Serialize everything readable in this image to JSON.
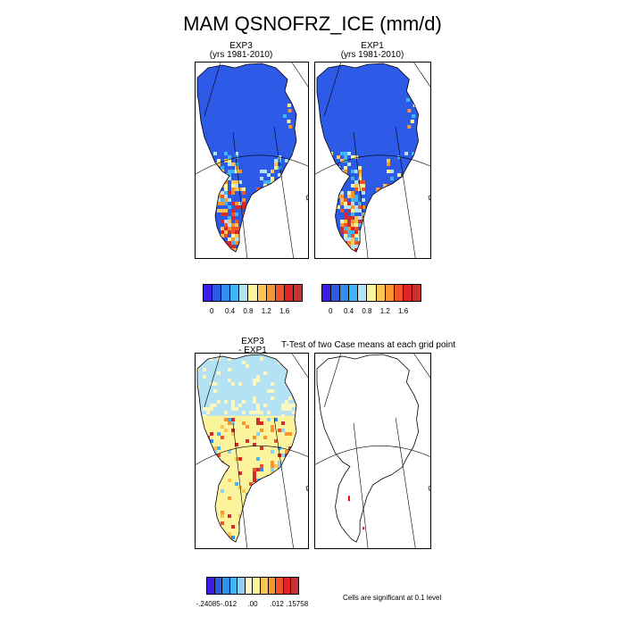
{
  "title": "MAM QSNOFRZ_ICE (mm/d)",
  "panels": [
    {
      "id": "exp3",
      "title_line1": "EXP3",
      "title_line2": "(yrs 1981-2010)"
    },
    {
      "id": "exp1",
      "title_line1": "EXP1",
      "title_line2": "(yrs 1981-2010)"
    },
    {
      "id": "diff",
      "title_line1": "EXP3",
      "title_line2": "- EXP1"
    },
    {
      "id": "ttest",
      "title_line1": "T-Test of two Case means at each grid point",
      "title_line2": ""
    }
  ],
  "colorbar_top": {
    "colors": [
      "#3a1ee6",
      "#2d5ae6",
      "#2f8ef0",
      "#41b6f6",
      "#b4e2f4",
      "#fcf49c",
      "#fcc455",
      "#f89530",
      "#f0532a",
      "#df2424",
      "#c83232"
    ],
    "tick_labels": [
      "0",
      "0.4",
      "0.8",
      "1.2",
      "1.6"
    ]
  },
  "colorbar_diff": {
    "colors": [
      "#3a1ee6",
      "#2d5ae6",
      "#2f8ef0",
      "#41b6f6",
      "#8ecff4",
      "#fcf6c0",
      "#fcf49c",
      "#fcc455",
      "#f89530",
      "#f0532a",
      "#df2424",
      "#c83232"
    ],
    "tick_labels": [
      "-.24085",
      "-.012",
      ".00",
      ".012",
      ".15758"
    ]
  },
  "significance_note": "Cells are significant at 0.1 level",
  "chart_data": [
    {
      "type": "heatmap",
      "title": "EXP3 (yrs 1981-2010)",
      "variable": "QSNOFRZ_ICE",
      "season": "MAM",
      "units": "mm/d",
      "region": "Greenland",
      "contour_levels": [
        0,
        0.2,
        0.4,
        0.6,
        0.8,
        1.0,
        1.2,
        1.4,
        1.6
      ]
    },
    {
      "type": "heatmap",
      "title": "EXP1 (yrs 1981-2010)",
      "variable": "QSNOFRZ_ICE",
      "season": "MAM",
      "units": "mm/d",
      "region": "Greenland",
      "contour_levels": [
        0,
        0.2,
        0.4,
        0.6,
        0.8,
        1.0,
        1.2,
        1.4,
        1.6
      ]
    },
    {
      "type": "heatmap",
      "title": "EXP3 - EXP1",
      "units": "mm/d",
      "region": "Greenland",
      "range": [
        -0.24085,
        0.15758
      ],
      "labeled_levels": [
        -0.24085,
        -0.012,
        0.0,
        0.012,
        0.15758
      ]
    },
    {
      "type": "heatmap",
      "title": "T-Test of two Case means at each grid point",
      "significance_level": 0.1
    }
  ]
}
